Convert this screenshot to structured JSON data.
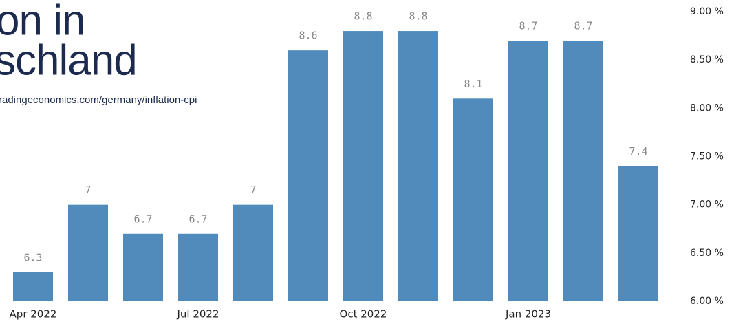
{
  "chart_data": {
    "type": "bar",
    "title": [
      "on in",
      "schland"
    ],
    "subtitle": "radingeconomics.com/germany/inflation-cpi",
    "categories": [
      "Apr 2022",
      null,
      null,
      "Jul 2022",
      null,
      null,
      "Oct 2022",
      null,
      null,
      "Jan 2023",
      null,
      null
    ],
    "values": [
      6.3,
      7,
      6.7,
      6.7,
      7,
      8.6,
      8.8,
      8.8,
      8.1,
      8.7,
      8.7,
      7.4
    ],
    "color": "#508bbb",
    "ylim": [
      6,
      9
    ],
    "yticks": [
      {
        "value": 6,
        "label": "6.00 %"
      },
      {
        "value": 6.5,
        "label": "6.50 %"
      },
      {
        "value": 7,
        "label": "7.00 %"
      },
      {
        "value": 7.5,
        "label": "7.50 %"
      },
      {
        "value": 8,
        "label": "8.00 %"
      },
      {
        "value": 8.5,
        "label": "8.50 %"
      },
      {
        "value": 9,
        "label": "9.00 %"
      }
    ],
    "grid": false
  }
}
